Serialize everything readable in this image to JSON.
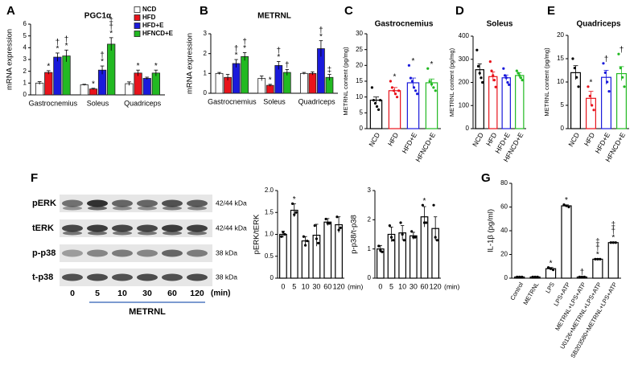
{
  "chart_data": [
    {
      "type": "bar",
      "panel": "A",
      "title": "PGC1α",
      "ylabel": "mRNA expression",
      "categories": [
        "Gastrocnemius",
        "Soleus",
        "Quadriceps"
      ],
      "ylim": [
        0,
        6
      ],
      "yticks": [
        0,
        1,
        2,
        3,
        4,
        5,
        6
      ],
      "legend": "upper right",
      "series": [
        {
          "name": "NCD",
          "color": "#ffffff",
          "values": [
            1.0,
            0.85,
            0.95
          ],
          "errors": [
            0.12,
            0.05,
            0.15
          ],
          "annotations": [
            null,
            null,
            null
          ]
        },
        {
          "name": "HFD",
          "color": "#e8131b",
          "values": [
            1.9,
            0.5,
            1.85
          ],
          "errors": [
            0.15,
            0.06,
            0.25
          ],
          "annotations": [
            [
              "*"
            ],
            [
              "*"
            ],
            [
              "*"
            ]
          ]
        },
        {
          "name": "HFD+E",
          "color": "#1a1adb",
          "values": [
            3.2,
            2.1,
            1.4
          ],
          "errors": [
            0.35,
            0.35,
            0.1
          ],
          "annotations": [
            [
              "†",
              "*"
            ],
            [
              "†",
              "*"
            ],
            null
          ]
        },
        {
          "name": "HFNCD+E",
          "color": "#22b922",
          "values": [
            3.3,
            4.3,
            1.85
          ],
          "errors": [
            0.5,
            0.55,
            0.25
          ],
          "annotations": [
            [
              "†",
              "*"
            ],
            [
              "‡",
              "†",
              "*"
            ],
            [
              "*"
            ]
          ]
        }
      ]
    },
    {
      "type": "bar",
      "panel": "B",
      "title": "METRNL",
      "ylabel": "mRNA expression",
      "categories": [
        "Gastrocnemius",
        "Soleus",
        "Quadriceps"
      ],
      "ylim": [
        0,
        3
      ],
      "yticks": [
        0,
        1,
        2,
        3
      ],
      "series": [
        {
          "name": "NCD",
          "color": "#ffffff",
          "values": [
            1.0,
            0.75,
            1.0
          ],
          "errors": [
            0.05,
            0.12,
            0.05
          ],
          "annotations": [
            null,
            null,
            null
          ]
        },
        {
          "name": "HFD",
          "color": "#e8131b",
          "values": [
            0.8,
            0.4,
            1.0
          ],
          "errors": [
            0.15,
            0.05,
            0.08
          ],
          "annotations": [
            null,
            [
              "*"
            ],
            null
          ]
        },
        {
          "name": "HFD+E",
          "color": "#1a1adb",
          "values": [
            1.5,
            1.4,
            2.25
          ],
          "errors": [
            0.2,
            0.2,
            0.4
          ],
          "annotations": [
            [
              "†",
              "*"
            ],
            [
              "†",
              "*"
            ],
            [
              "†",
              "*"
            ]
          ]
        },
        {
          "name": "HFNCD+E",
          "color": "#22b922",
          "values": [
            1.85,
            1.05,
            0.8
          ],
          "errors": [
            0.2,
            0.15,
            0.15
          ],
          "annotations": [
            [
              "†",
              "*"
            ],
            [
              "†"
            ],
            [
              "‡"
            ]
          ]
        }
      ]
    },
    {
      "type": "bar",
      "panel": "C",
      "title": "Gastrocnemius",
      "ylabel": "METRNL content (pg/mg)",
      "categories": [
        "NCD",
        "HFD",
        "HFD+E",
        "HFNCD+E"
      ],
      "colors": [
        "#000000",
        "#e8131b",
        "#1a1adb",
        "#22b922"
      ],
      "values": [
        9,
        12,
        14.5,
        14.5
      ],
      "errors": [
        1,
        1,
        1.5,
        1.2
      ],
      "points": [
        [
          13,
          9,
          8,
          7,
          6,
          9
        ],
        [
          15,
          13,
          12,
          11,
          10,
          12
        ],
        [
          20,
          16,
          15,
          13,
          12,
          11
        ],
        [
          19,
          15,
          14,
          13,
          12
        ]
      ],
      "annotations": [
        null,
        [
          "*"
        ],
        [
          "*"
        ],
        [
          "*"
        ]
      ],
      "ylim": [
        0,
        30
      ],
      "yticks": [
        0,
        5,
        10,
        15,
        20,
        25,
        30
      ],
      "bar_style": "outline",
      "rotate_labels": true
    },
    {
      "type": "bar",
      "panel": "D",
      "title": "Soleus",
      "ylabel": "METRNL content (pg/mg)",
      "categories": [
        "NCD",
        "HFD",
        "HFD+E",
        "HFNCD+E"
      ],
      "colors": [
        "#000000",
        "#e8131b",
        "#1a1adb",
        "#22b922"
      ],
      "values": [
        255,
        225,
        220,
        230
      ],
      "errors": [
        25,
        20,
        12,
        12
      ],
      "points": [
        [
          340,
          270,
          240,
          220,
          200
        ],
        [
          290,
          250,
          230,
          210,
          180
        ],
        [
          260,
          230,
          220,
          200,
          190
        ],
        [
          250,
          240,
          230,
          220,
          210
        ]
      ],
      "ylim": [
        0,
        400
      ],
      "yticks": [
        0,
        100,
        200,
        300,
        400
      ],
      "bar_style": "outline",
      "rotate_labels": true
    },
    {
      "type": "bar",
      "panel": "E",
      "title": "Quadriceps",
      "ylabel": "METRNL content (pg/mg)",
      "categories": [
        "NCD",
        "HFD",
        "HFD+E",
        "HFNCD+E"
      ],
      "colors": [
        "#000000",
        "#e8131b",
        "#1a1adb",
        "#22b922"
      ],
      "values": [
        12,
        6.5,
        11,
        11.8
      ],
      "errors": [
        1.5,
        1.5,
        1.5,
        1.5
      ],
      "points": [
        [
          15,
          13,
          11,
          9
        ],
        [
          9,
          7,
          5,
          4
        ],
        [
          14,
          12,
          10,
          8
        ],
        [
          16,
          13,
          11,
          9
        ]
      ],
      "annotations": [
        null,
        [
          "*"
        ],
        [
          "†"
        ],
        [
          "†"
        ]
      ],
      "ylim": [
        0,
        20
      ],
      "yticks": [
        0,
        5,
        10,
        15,
        20
      ],
      "bar_style": "outline",
      "rotate_labels": true
    },
    {
      "type": "bar",
      "ylabel": "pERK/tERK",
      "xlabel": "(min)",
      "categories": [
        "0",
        "5",
        "10",
        "30",
        "60",
        "120"
      ],
      "color": "#000000",
      "values": [
        1.0,
        1.55,
        0.85,
        0.98,
        1.28,
        1.22
      ],
      "errors": [
        0.07,
        0.15,
        0.1,
        0.25,
        0.08,
        0.18
      ],
      "points": [
        [
          0.95,
          1.05,
          1.0
        ],
        [
          1.7,
          1.45,
          1.5
        ],
        [
          0.95,
          0.75,
          0.85
        ],
        [
          1.2,
          0.9,
          0.8
        ],
        [
          1.35,
          1.25,
          1.25
        ],
        [
          1.4,
          1.1,
          1.15
        ]
      ],
      "annotations": [
        null,
        [
          "*"
        ],
        null,
        null,
        null,
        null
      ],
      "ylim": [
        0,
        2
      ],
      "yticks": [
        0,
        0.5,
        {
          "value": 1,
          "label": "1.0"
        },
        1.5,
        {
          "value": 2,
          "label": "2.0"
        }
      ],
      "bar_style": "outline"
    },
    {
      "type": "bar",
      "ylabel": "p-p38/t-p38",
      "xlabel": "(min)",
      "categories": [
        "0",
        "5",
        "10",
        "30",
        "60",
        "120"
      ],
      "color": "#000000",
      "values": [
        1.0,
        1.5,
        1.55,
        1.45,
        2.1,
        1.7
      ],
      "errors": [
        0.12,
        0.25,
        0.25,
        0.12,
        0.35,
        0.4
      ],
      "points": [
        [
          1.1,
          0.95,
          0.9
        ],
        [
          1.8,
          1.4,
          1.3
        ],
        [
          1.9,
          1.5,
          1.3
        ],
        [
          1.6,
          1.4,
          1.4
        ],
        [
          2.5,
          1.9,
          1.9
        ],
        [
          2.5,
          1.4,
          1.3
        ]
      ],
      "annotations": [
        null,
        null,
        null,
        null,
        [
          "*"
        ],
        null
      ],
      "ylim": [
        0,
        3
      ],
      "yticks": [
        0,
        1,
        2,
        3
      ],
      "bar_style": "outline"
    },
    {
      "type": "bar",
      "panel": "G",
      "ylabel": "IL-1β (pg/ml)",
      "categories": [
        "Control",
        "METRNL",
        "LPS",
        "LPS+ATP",
        "METRNL+LPS+ATP",
        "U0126+METRNL+LPS+ATP",
        "SB203580+METRNL+LPS+ATP"
      ],
      "color": "#000000",
      "values": [
        1,
        1,
        8,
        61,
        1,
        16,
        30
      ],
      "errors": [
        0.3,
        0.3,
        1,
        0.8,
        0.3,
        0.5,
        0.5
      ],
      "points": [
        [
          1,
          1,
          1
        ],
        [
          1,
          1,
          1
        ],
        [
          9,
          8,
          7
        ],
        [
          62,
          61,
          60
        ],
        [
          1,
          1,
          1
        ],
        [
          16,
          16,
          16
        ],
        [
          30,
          30,
          30
        ]
      ],
      "annotations": [
        null,
        null,
        [
          "*"
        ],
        [
          "*"
        ],
        [
          "†"
        ],
        [
          "‡",
          "†",
          "*"
        ],
        [
          "‡",
          "†",
          "*"
        ]
      ],
      "ylim": [
        0,
        80
      ],
      "yticks": [
        0,
        20,
        40,
        60,
        80
      ],
      "bar_style": "outline",
      "rotate_labels": true
    }
  ],
  "blot": {
    "panel": "F",
    "rows": [
      {
        "name": "pERK",
        "size": "42/44 kDa"
      },
      {
        "name": "tERK",
        "size": "42/44 kDa"
      },
      {
        "name": "p-p38",
        "size": "38 kDa"
      },
      {
        "name": "t-p38",
        "size": "38 kDa"
      }
    ],
    "times": [
      "0",
      "5",
      "10",
      "30",
      "60",
      "120"
    ],
    "unit": "(min)",
    "treatment": "METRNL"
  }
}
